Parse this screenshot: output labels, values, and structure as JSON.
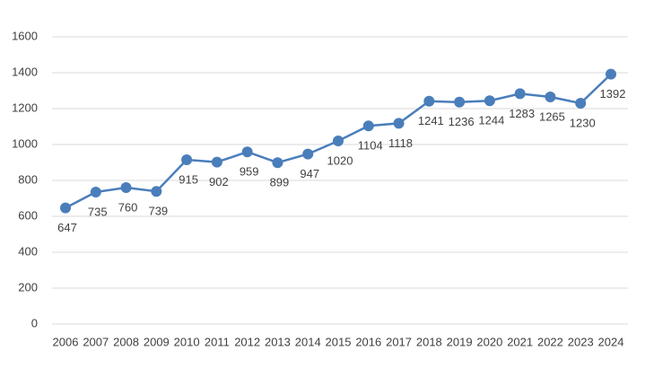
{
  "chart_data": {
    "type": "line",
    "categories": [
      "2006",
      "2007",
      "2008",
      "2009",
      "2010",
      "2011",
      "2012",
      "2013",
      "2014",
      "2015",
      "2016",
      "2017",
      "2018",
      "2019",
      "2020",
      "2021",
      "2022",
      "2023",
      "2024"
    ],
    "values": [
      647,
      735,
      760,
      739,
      915,
      902,
      959,
      899,
      947,
      1020,
      1104,
      1118,
      1241,
      1236,
      1244,
      1283,
      1265,
      1230,
      1392
    ],
    "color": "#4a7ebb",
    "ylim": [
      0,
      1600
    ],
    "yticks": [
      0,
      200,
      400,
      600,
      800,
      1000,
      1200,
      1400,
      1600
    ],
    "grid": true
  }
}
